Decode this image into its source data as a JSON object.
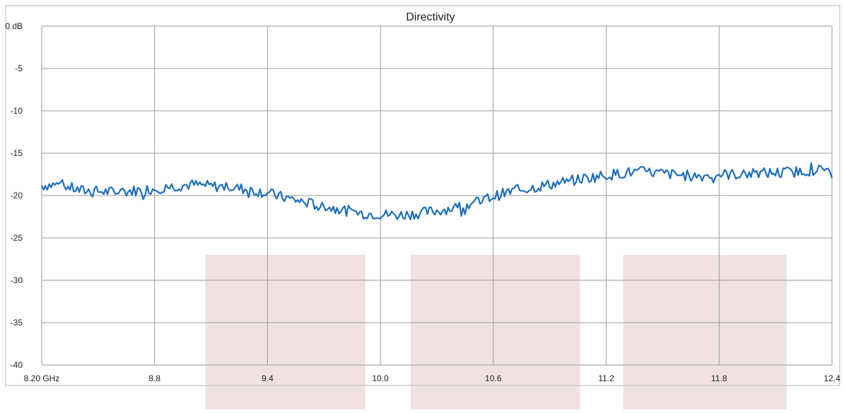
{
  "chart_data": {
    "type": "line",
    "title": "Directivity",
    "xlabel": "",
    "ylabel": "",
    "xlim": [
      8.2,
      12.4
    ],
    "ylim": [
      -40,
      0
    ],
    "x_ticks": [
      8.2,
      8.8,
      9.4,
      10.0,
      10.6,
      11.2,
      11.8,
      12.4
    ],
    "x_tick_labels": [
      "8.20 GHz",
      "8.8",
      "9.4",
      "10.0",
      "10.6",
      "11.2",
      "11.8",
      "12.4"
    ],
    "y_ticks": [
      0,
      -5,
      -10,
      -15,
      -20,
      -25,
      -30,
      -35,
      -40
    ],
    "y_tick_labels": [
      "0 dB",
      "-5",
      "-10",
      "-15",
      "-20",
      "-25",
      "-30",
      "-35",
      "-40"
    ],
    "grid": true,
    "line_color": "#1f6fba",
    "shaded_region_color": "#f1e1e2",
    "shaded_regions": [
      {
        "x": [
          9.07,
          9.92
        ],
        "y_top": -27
      },
      {
        "x": [
          10.16,
          11.06
        ],
        "y_top": -27
      },
      {
        "x": [
          11.29,
          12.16
        ],
        "y_top": -27
      }
    ],
    "series": [
      {
        "name": "",
        "points": [
          [
            8.2,
            -18.8
          ],
          [
            8.3,
            -18.7
          ],
          [
            8.4,
            -19.4
          ],
          [
            8.5,
            -19.5
          ],
          [
            8.6,
            -19.6
          ],
          [
            8.7,
            -19.4
          ],
          [
            8.8,
            -19.2
          ],
          [
            8.9,
            -18.9
          ],
          [
            9.0,
            -18.7
          ],
          [
            9.1,
            -18.9
          ],
          [
            9.2,
            -19.0
          ],
          [
            9.3,
            -19.3
          ],
          [
            9.4,
            -19.7
          ],
          [
            9.5,
            -20.3
          ],
          [
            9.6,
            -20.8
          ],
          [
            9.7,
            -21.3
          ],
          [
            9.8,
            -21.7
          ],
          [
            9.9,
            -22.1
          ],
          [
            10.0,
            -22.2
          ],
          [
            10.1,
            -22.3
          ],
          [
            10.2,
            -22.1
          ],
          [
            10.3,
            -21.8
          ],
          [
            10.4,
            -21.4
          ],
          [
            10.5,
            -20.9
          ],
          [
            10.6,
            -20.1
          ],
          [
            10.7,
            -19.5
          ],
          [
            10.8,
            -19.1
          ],
          [
            10.9,
            -18.7
          ],
          [
            11.0,
            -18.3
          ],
          [
            11.1,
            -17.9
          ],
          [
            11.2,
            -17.6
          ],
          [
            11.3,
            -17.3
          ],
          [
            11.4,
            -17.2
          ],
          [
            11.5,
            -17.4
          ],
          [
            11.6,
            -17.6
          ],
          [
            11.7,
            -17.7
          ],
          [
            11.8,
            -17.5
          ],
          [
            11.9,
            -17.5
          ],
          [
            12.0,
            -17.4
          ],
          [
            12.1,
            -17.3
          ],
          [
            12.2,
            -17.2
          ],
          [
            12.3,
            -17.0
          ],
          [
            12.4,
            -16.9
          ]
        ]
      }
    ]
  }
}
